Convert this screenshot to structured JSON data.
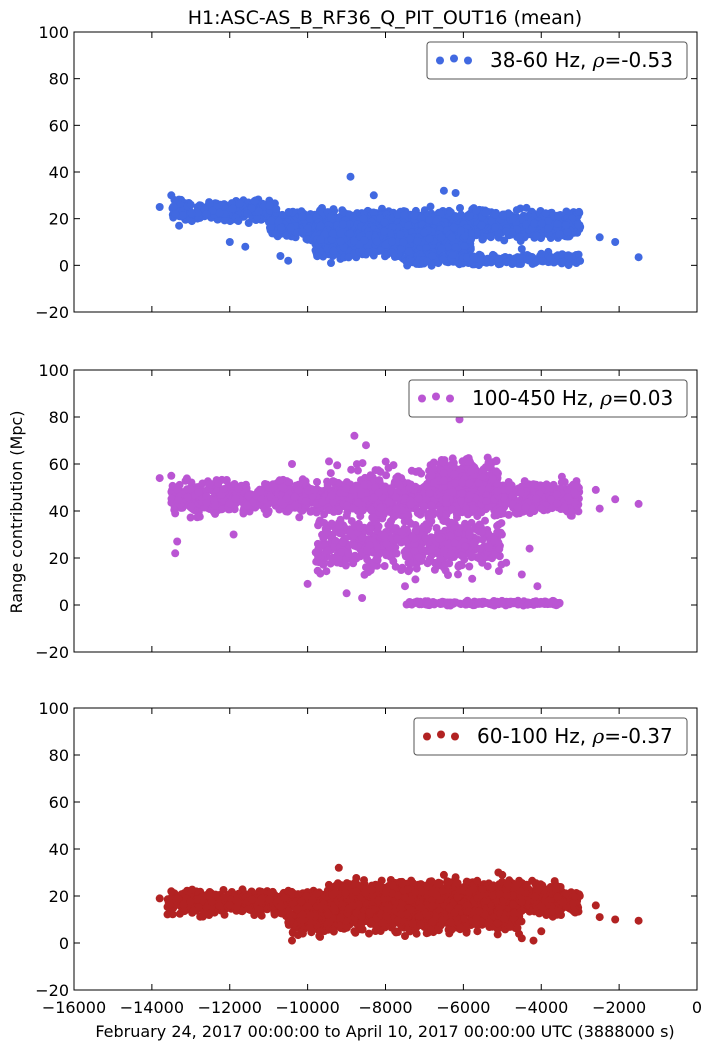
{
  "figure": {
    "title": "H1:ASC-AS_B_RF36_Q_PIT_OUT16 (mean)",
    "ylabel": "Range contribution (Mpc)",
    "xlabel": "February 24, 2017 00:00:00 to April 10, 2017 00:00:00 UTC (3888000 s)"
  },
  "chart_data": [
    {
      "type": "scatter",
      "series": [
        {
          "name": "38-60 Hz, ρ=-0.53",
          "color": "#4169e1"
        }
      ],
      "legend": {
        "label": "38-60 Hz, ",
        "rho": "ρ",
        "value": "=-0.53",
        "position": "top-right"
      },
      "xlim": [
        -16000,
        0
      ],
      "ylim": [
        -20,
        100
      ],
      "yticks": [
        -20,
        0,
        20,
        40,
        60,
        80,
        100
      ],
      "ytick_labels": [
        "−20",
        "0",
        "20",
        "40",
        "60",
        "80",
        "100"
      ],
      "points": [
        [
          -13800,
          25
        ],
        [
          -13500,
          30
        ],
        [
          -13400,
          22
        ],
        [
          -13300,
          17
        ],
        [
          -13000,
          26
        ],
        [
          -12600,
          22
        ],
        [
          -12000,
          10
        ],
        [
          -11600,
          8
        ],
        [
          -10700,
          4
        ],
        [
          -10500,
          2
        ],
        [
          -10000,
          11
        ],
        [
          -9400,
          1
        ],
        [
          -8900,
          38
        ],
        [
          -8300,
          30
        ],
        [
          -7800,
          5
        ],
        [
          -7400,
          6
        ],
        [
          -6500,
          32
        ],
        [
          -6200,
          31
        ],
        [
          -4500,
          7
        ],
        [
          -4000,
          5
        ],
        [
          -3300,
          4
        ],
        [
          -2500,
          12
        ],
        [
          -2100,
          10
        ],
        [
          -1500,
          3.5
        ]
      ],
      "bands": [
        {
          "x": [
            -13500,
            -10800
          ],
          "y": [
            17,
            30
          ],
          "count": 260
        },
        {
          "x": [
            -11000,
            -3000
          ],
          "y": [
            9,
            26
          ],
          "count": 1500
        },
        {
          "x": [
            -9800,
            -5800
          ],
          "y": [
            1,
            20
          ],
          "count": 800
        },
        {
          "x": [
            -7500,
            -3000
          ],
          "y": [
            -1,
            6
          ],
          "count": 260
        }
      ]
    },
    {
      "type": "scatter",
      "series": [
        {
          "name": "100-450 Hz, ρ=0.03",
          "color": "#ba55d3"
        }
      ],
      "legend": {
        "label": "100-450 Hz, ",
        "rho": "ρ",
        "value": "=0.03",
        "position": "top-right"
      },
      "xlim": [
        -16000,
        0
      ],
      "ylim": [
        -20,
        100
      ],
      "yticks": [
        -20,
        0,
        20,
        40,
        60,
        80,
        100
      ],
      "ytick_labels": [
        "−20",
        "0",
        "20",
        "40",
        "60",
        "80",
        "100"
      ],
      "points": [
        [
          -13800,
          54
        ],
        [
          -13500,
          55
        ],
        [
          -13400,
          39
        ],
        [
          -13350,
          27
        ],
        [
          -13400,
          22
        ],
        [
          -12800,
          48
        ],
        [
          -11900,
          30
        ],
        [
          -11000,
          40
        ],
        [
          -10400,
          60
        ],
        [
          -10000,
          9
        ],
        [
          -8800,
          72
        ],
        [
          -8500,
          68
        ],
        [
          -9000,
          5
        ],
        [
          -8600,
          3
        ],
        [
          -7500,
          8
        ],
        [
          -6100,
          79
        ],
        [
          -4900,
          18
        ],
        [
          -4500,
          13
        ],
        [
          -4100,
          8
        ],
        [
          -4300,
          24
        ],
        [
          -4000,
          41
        ],
        [
          -2600,
          49
        ],
        [
          -2100,
          45
        ],
        [
          -1500,
          43
        ],
        [
          -2500,
          41
        ]
      ],
      "bands": [
        {
          "x": [
            -13500,
            -3000
          ],
          "y": [
            36,
            55
          ],
          "count": 1500
        },
        {
          "x": [
            -9800,
            -5000
          ],
          "y": [
            8,
            44
          ],
          "count": 600
        },
        {
          "x": [
            -7500,
            -3500
          ],
          "y": [
            -0.5,
            2
          ],
          "count": 220
        },
        {
          "x": [
            -6900,
            -5100
          ],
          "y": [
            40,
            65
          ],
          "count": 400
        },
        {
          "x": [
            -9500,
            -5500
          ],
          "y": [
            30,
            66
          ],
          "count": 150
        }
      ]
    },
    {
      "type": "scatter",
      "series": [
        {
          "name": "60-100 Hz, ρ=-0.37",
          "color": "#b22222"
        }
      ],
      "legend": {
        "label": "60-100 Hz, ",
        "rho": "ρ",
        "value": "=-0.37",
        "position": "top-right"
      },
      "xlim": [
        -16000,
        0
      ],
      "ylim": [
        -20,
        100
      ],
      "yticks": [
        -20,
        0,
        20,
        40,
        60,
        80,
        100
      ],
      "ytick_labels": [
        "−20",
        "0",
        "20",
        "40",
        "60",
        "80",
        "100"
      ],
      "xticks": [
        -16000,
        -14000,
        -12000,
        -10000,
        -8000,
        -6000,
        -4000,
        -2000,
        0
      ],
      "xtick_labels": [
        "−16000",
        "−14000",
        "−12000",
        "−10000",
        "−8000",
        "−6000",
        "−4000",
        "−2000",
        "0"
      ],
      "points": [
        [
          -13800,
          19
        ],
        [
          -13500,
          22
        ],
        [
          -10400,
          1
        ],
        [
          -9700,
          3
        ],
        [
          -9200,
          32
        ],
        [
          -8800,
          5
        ],
        [
          -7500,
          3
        ],
        [
          -6500,
          29
        ],
        [
          -6200,
          28
        ],
        [
          -5100,
          30
        ],
        [
          -5000,
          29
        ],
        [
          -4500,
          2
        ],
        [
          -4200,
          1
        ],
        [
          -4000,
          5
        ],
        [
          -2600,
          16
        ],
        [
          -2500,
          11
        ],
        [
          -2100,
          10
        ],
        [
          -1500,
          9.5
        ]
      ],
      "bands": [
        {
          "x": [
            -13600,
            -3000
          ],
          "y": [
            10,
            24
          ],
          "count": 1500
        },
        {
          "x": [
            -10500,
            -4500
          ],
          "y": [
            2,
            18
          ],
          "count": 700
        },
        {
          "x": [
            -9500,
            -3500
          ],
          "y": [
            18,
            28
          ],
          "count": 300
        }
      ]
    }
  ]
}
